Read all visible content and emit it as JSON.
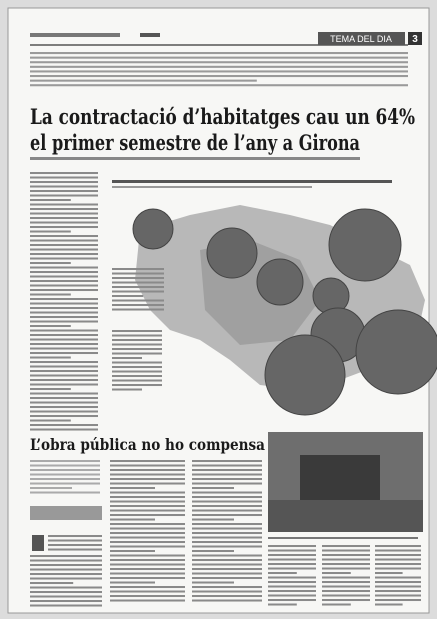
{
  "header": {
    "section": "TEMA DEL DIA",
    "page": "3"
  },
  "article": {
    "headline": [
      "La contractació d’habitatges cau un 64%",
      "el primer semestre de l’any a Girona"
    ]
  },
  "secondary": {
    "headline": "L’obra pública no ho compensa"
  }
}
